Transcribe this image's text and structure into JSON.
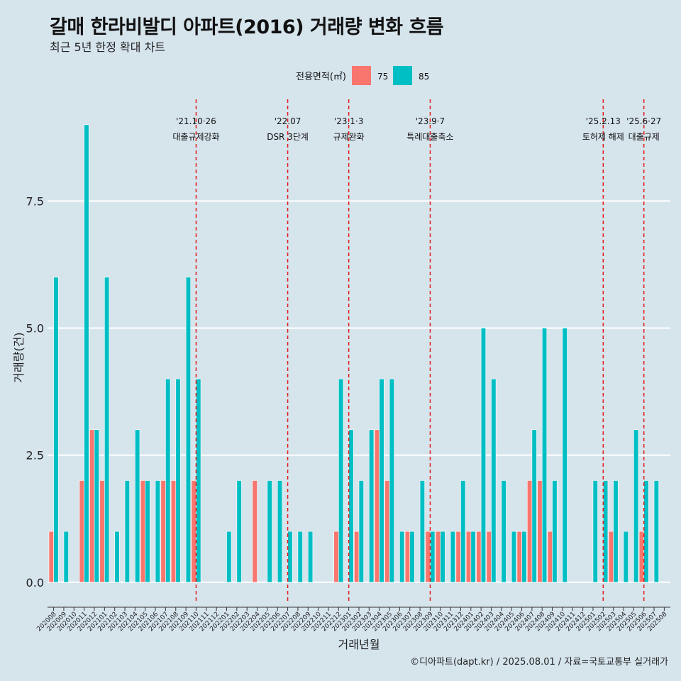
{
  "title": "갈매 한라비발디 아파트(2016) 거래량 변화 흐름",
  "subtitle": "최근 5년 한정 확대 차트",
  "caption": "©디아파트(dapt.kr) / 2025.08.01 / 자료=국토교통부 실거래가",
  "colors": {
    "s75": "#F8766D",
    "s85": "#00BFC4",
    "event": "#e41a1c",
    "grid": "#ffffff",
    "bg": "#d6e4ec"
  },
  "chart_data": {
    "type": "bar",
    "title": "갈매 한라비발디 아파트(2016) 거래량 변화 흐름",
    "xlabel": "거래년월",
    "ylabel": "거래량(건)",
    "ylim": [
      -0.38,
      9.5
    ],
    "yticks": [
      0.0,
      2.5,
      5.0,
      7.5
    ],
    "ytick_labels": [
      "0.0",
      "2.5",
      "5.0",
      "7.5"
    ],
    "legend": {
      "title": "전용면적(㎡)",
      "placement": "top",
      "items": [
        "75",
        "85"
      ]
    },
    "categories": [
      "202008",
      "202009",
      "202010",
      "202011",
      "202012",
      "202101",
      "202102",
      "202103",
      "202104",
      "202105",
      "202106",
      "202107",
      "202108",
      "202109",
      "202110",
      "202111",
      "202112",
      "202201",
      "202202",
      "202203",
      "202204",
      "202205",
      "202206",
      "202207",
      "202208",
      "202209",
      "202210",
      "202211",
      "202212",
      "202301",
      "202302",
      "202303",
      "202304",
      "202305",
      "202306",
      "202307",
      "202308",
      "202309",
      "202310",
      "202311",
      "202312",
      "202401",
      "202402",
      "202403",
      "202404",
      "202405",
      "202406",
      "202407",
      "202408",
      "202409",
      "202410",
      "202411",
      "202412",
      "202501",
      "202502",
      "202503",
      "202504",
      "202505",
      "202506",
      "202507",
      "202508"
    ],
    "series": [
      {
        "name": "75",
        "values": [
          1,
          0,
          0,
          2,
          3,
          2,
          0,
          0,
          0,
          2,
          0,
          2,
          2,
          0,
          2,
          0,
          0,
          0,
          0,
          0,
          2,
          0,
          0,
          0,
          0,
          0,
          0,
          0,
          1,
          0,
          1,
          0,
          3,
          2,
          0,
          1,
          0,
          1,
          1,
          0,
          1,
          1,
          1,
          1,
          0,
          0,
          1,
          2,
          2,
          1,
          0,
          0,
          0,
          0,
          0,
          1,
          0,
          0,
          1,
          0,
          0
        ]
      },
      {
        "name": "85",
        "values": [
          6,
          1,
          0,
          9,
          3,
          6,
          1,
          2,
          3,
          2,
          2,
          4,
          4,
          6,
          4,
          0,
          0,
          1,
          2,
          0,
          0,
          2,
          2,
          1,
          1,
          1,
          0,
          0,
          4,
          3,
          2,
          3,
          4,
          4,
          1,
          1,
          2,
          1,
          1,
          1,
          2,
          1,
          5,
          4,
          2,
          1,
          1,
          3,
          5,
          2,
          5,
          0,
          0,
          2,
          2,
          2,
          1,
          3,
          2,
          2,
          0
        ]
      }
    ],
    "events": [
      {
        "x": 14.0,
        "date": "'21.10·26",
        "label": "대출규제강화"
      },
      {
        "x": 23.0,
        "date": "'22.07",
        "label": "DSR 3단계"
      },
      {
        "x": 29.0,
        "date": "'23.1·3",
        "label": "규제완화"
      },
      {
        "x": 37.0,
        "date": "'23.9·7",
        "label": "특례대출축소"
      },
      {
        "x": 54.0,
        "date": "'25.2.13",
        "label": "토허제 해제"
      },
      {
        "x": 58.0,
        "date": "'25.6·27",
        "label": "대출규제"
      }
    ]
  }
}
